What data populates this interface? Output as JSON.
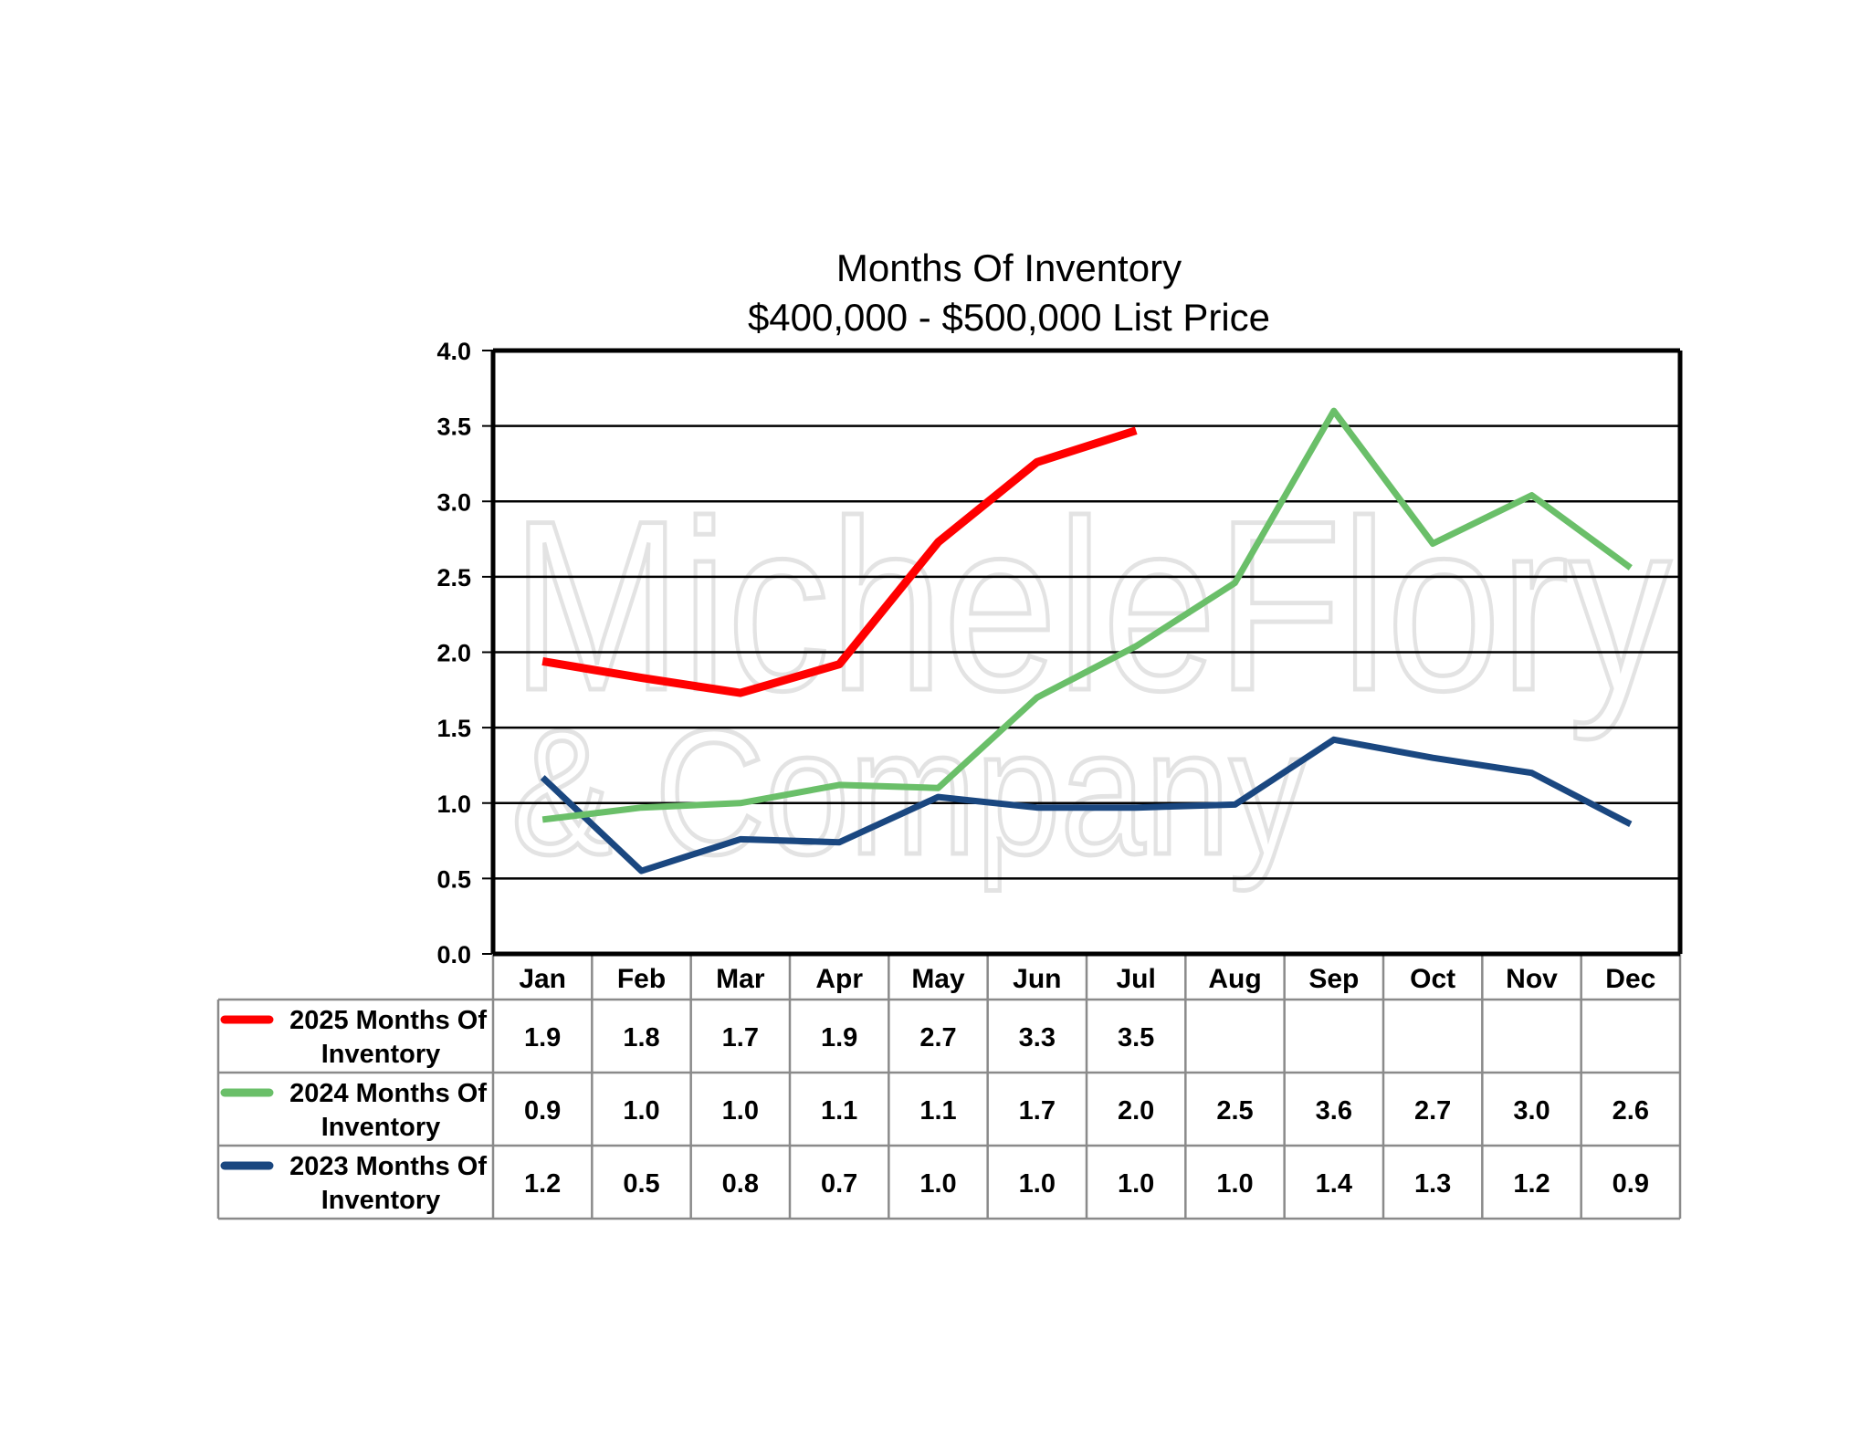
{
  "chart_data": {
    "type": "line",
    "title": "Months Of Inventory",
    "subtitle": "$400,000 - $500,000 List Price",
    "categories": [
      "Jan",
      "Feb",
      "Mar",
      "Apr",
      "May",
      "Jun",
      "Jul",
      "Aug",
      "Sep",
      "Oct",
      "Nov",
      "Dec"
    ],
    "ylim": [
      0,
      4
    ],
    "yticks": [
      "0.0",
      "0.5",
      "1.0",
      "1.5",
      "2.0",
      "2.5",
      "3.0",
      "3.5",
      "4.0"
    ],
    "grid": true,
    "legend": "data-table-left",
    "watermark": [
      "MicheleFlory",
      "& Company"
    ],
    "series": [
      {
        "name": "2025 Months Of Inventory",
        "name_lines": [
          "2025 Months Of",
          "Inventory"
        ],
        "color": "#ff0000",
        "values": [
          1.94,
          1.83,
          1.73,
          1.92,
          2.73,
          3.26,
          3.47,
          null,
          null,
          null,
          null,
          null
        ],
        "labels": [
          "1.9",
          "1.8",
          "1.7",
          "1.9",
          "2.7",
          "3.3",
          "3.5",
          "",
          "",
          "",
          "",
          ""
        ]
      },
      {
        "name": "2024 Months Of Inventory",
        "name_lines": [
          "2024 Months Of",
          "Inventory"
        ],
        "color": "#6abf69",
        "values": [
          0.89,
          0.97,
          1.0,
          1.12,
          1.1,
          1.7,
          2.04,
          2.46,
          3.6,
          2.72,
          3.04,
          2.56
        ],
        "labels": [
          "0.9",
          "1.0",
          "1.0",
          "1.1",
          "1.1",
          "1.7",
          "2.0",
          "2.5",
          "3.6",
          "2.7",
          "3.0",
          "2.6"
        ]
      },
      {
        "name": "2023 Months Of Inventory",
        "name_lines": [
          "2023 Months Of",
          "Inventory"
        ],
        "color": "#1a4780",
        "values": [
          1.17,
          0.55,
          0.76,
          0.74,
          1.04,
          0.97,
          0.97,
          0.99,
          1.42,
          1.3,
          1.2,
          0.86
        ],
        "labels": [
          "1.2",
          "0.5",
          "0.8",
          "0.7",
          "1.0",
          "1.0",
          "1.0",
          "1.0",
          "1.4",
          "1.3",
          "1.2",
          "0.9"
        ]
      }
    ]
  }
}
